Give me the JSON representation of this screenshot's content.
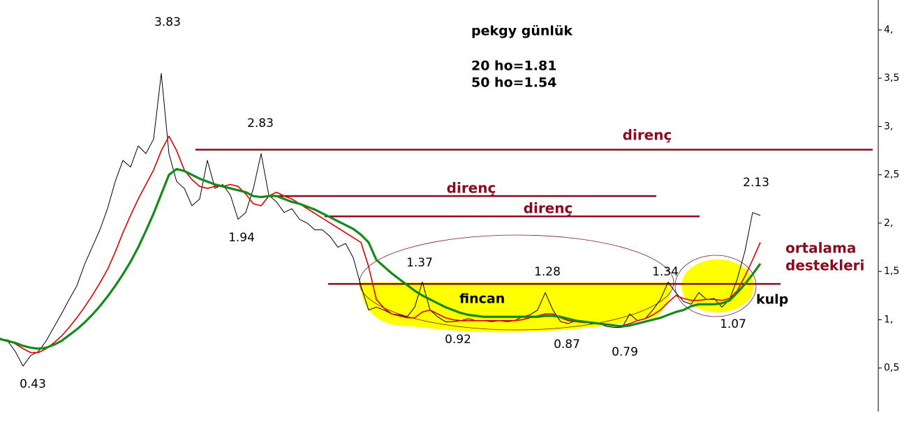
{
  "chart_data": {
    "type": "line",
    "title": "pekgy günlük",
    "moving_average_labels": [
      "20 ho=1.81",
      "50 ho=1.54"
    ],
    "ylim": [
      0.05,
      4.31
    ],
    "yticks": [
      {
        "value": 4,
        "label": "4,"
      },
      {
        "value": 3.5,
        "label": "3,5"
      },
      {
        "value": 3,
        "label": "3,"
      },
      {
        "value": 2.5,
        "label": "2,5"
      },
      {
        "value": 2,
        "label": "2,"
      },
      {
        "value": 1.5,
        "label": "1,5"
      },
      {
        "value": 1,
        "label": "1,"
      },
      {
        "value": 0.5,
        "label": "0,5"
      }
    ],
    "series": [
      {
        "color": "#000000",
        "values": [
          0.81,
          0.78,
          0.67,
          0.52,
          0.63,
          0.67,
          0.78,
          0.92,
          1.06,
          1.21,
          1.35,
          1.57,
          1.75,
          1.93,
          2.15,
          2.43,
          2.65,
          2.58,
          2.8,
          2.72,
          2.87,
          3.55,
          2.72,
          2.43,
          2.36,
          2.18,
          2.25,
          2.65,
          2.36,
          2.4,
          2.29,
          2.04,
          2.11,
          2.36,
          2.72,
          2.29,
          2.22,
          2.11,
          2.15,
          2.04,
          2.0,
          1.93,
          1.93,
          1.86,
          1.75,
          1.79,
          1.64,
          1.35,
          1.1,
          1.13,
          1.1,
          1.06,
          1.05,
          1.03,
          1.13,
          1.39,
          1.1,
          1.03,
          0.98,
          0.98,
          0.99,
          1.01,
          0.99,
          0.99,
          0.98,
          0.99,
          0.98,
          0.99,
          1.03,
          1.05,
          1.1,
          1.28,
          1.1,
          0.98,
          0.96,
          0.99,
          0.98,
          0.96,
          0.96,
          0.93,
          0.92,
          0.92,
          1.06,
          0.99,
          1.01,
          1.1,
          1.21,
          1.39,
          1.28,
          1.19,
          1.16,
          1.28,
          1.21,
          1.22,
          1.13,
          1.21,
          1.42,
          1.71,
          2.11,
          2.08
        ]
      },
      {
        "color": "#e00000",
        "values": [
          0.8,
          0.79,
          0.75,
          0.7,
          0.66,
          0.66,
          0.7,
          0.76,
          0.83,
          0.92,
          1.02,
          1.13,
          1.25,
          1.38,
          1.52,
          1.7,
          1.9,
          2.08,
          2.25,
          2.4,
          2.55,
          2.75,
          2.9,
          2.75,
          2.55,
          2.45,
          2.38,
          2.36,
          2.38,
          2.38,
          2.4,
          2.38,
          2.3,
          2.2,
          2.18,
          2.28,
          2.32,
          2.28,
          2.25,
          2.2,
          2.15,
          2.1,
          2.05,
          2.0,
          1.95,
          1.9,
          1.85,
          1.8,
          1.55,
          1.21,
          1.12,
          1.06,
          1.04,
          1.02,
          1.02,
          1.08,
          1.1,
          1.06,
          1.02,
          1.0,
          0.99,
          0.99,
          0.99,
          0.99,
          0.99,
          0.99,
          0.99,
          0.99,
          1.0,
          1.02,
          1.04,
          1.06,
          1.06,
          1.02,
          0.99,
          0.98,
          0.97,
          0.97,
          0.96,
          0.95,
          0.94,
          0.94,
          0.96,
          0.99,
          1.01,
          1.05,
          1.1,
          1.18,
          1.25,
          1.22,
          1.2,
          1.2,
          1.21,
          1.21,
          1.2,
          1.22,
          1.3,
          1.45,
          1.62,
          1.8
        ]
      },
      {
        "color": "#138a1a",
        "values": [
          0.8,
          0.78,
          0.76,
          0.73,
          0.71,
          0.7,
          0.71,
          0.74,
          0.78,
          0.84,
          0.9,
          0.97,
          1.05,
          1.14,
          1.24,
          1.35,
          1.47,
          1.6,
          1.75,
          1.92,
          2.1,
          2.3,
          2.5,
          2.56,
          2.54,
          2.5,
          2.46,
          2.43,
          2.4,
          2.38,
          2.36,
          2.34,
          2.32,
          2.28,
          2.27,
          2.28,
          2.28,
          2.25,
          2.22,
          2.2,
          2.17,
          2.14,
          2.1,
          2.06,
          2.02,
          1.98,
          1.94,
          1.88,
          1.8,
          1.62,
          1.55,
          1.48,
          1.42,
          1.36,
          1.3,
          1.25,
          1.21,
          1.17,
          1.13,
          1.1,
          1.07,
          1.05,
          1.04,
          1.03,
          1.03,
          1.03,
          1.03,
          1.03,
          1.03,
          1.03,
          1.03,
          1.04,
          1.04,
          1.03,
          1.01,
          0.99,
          0.98,
          0.97,
          0.96,
          0.95,
          0.94,
          0.93,
          0.94,
          0.96,
          0.98,
          1.0,
          1.02,
          1.05,
          1.08,
          1.1,
          1.14,
          1.16,
          1.16,
          1.16,
          1.17,
          1.2,
          1.28,
          1.37,
          1.47,
          1.58
        ]
      }
    ],
    "resistance_lines": [
      {
        "value": 2.76,
        "label": "direnç"
      },
      {
        "value": 2.28,
        "label": "direnç"
      },
      {
        "value": 2.07,
        "label": "direnç"
      },
      {
        "value": 1.37
      }
    ],
    "price_labels": [
      "3.83",
      "2.83",
      "1.94",
      "0.43",
      "1.37",
      "1.28",
      "1.34",
      "0.92",
      "0.87",
      "0.79",
      "1.07",
      "2.13"
    ],
    "pattern_labels": [
      "fincan",
      "kulp"
    ],
    "support_label": [
      "ortalama",
      "destekleri"
    ]
  }
}
